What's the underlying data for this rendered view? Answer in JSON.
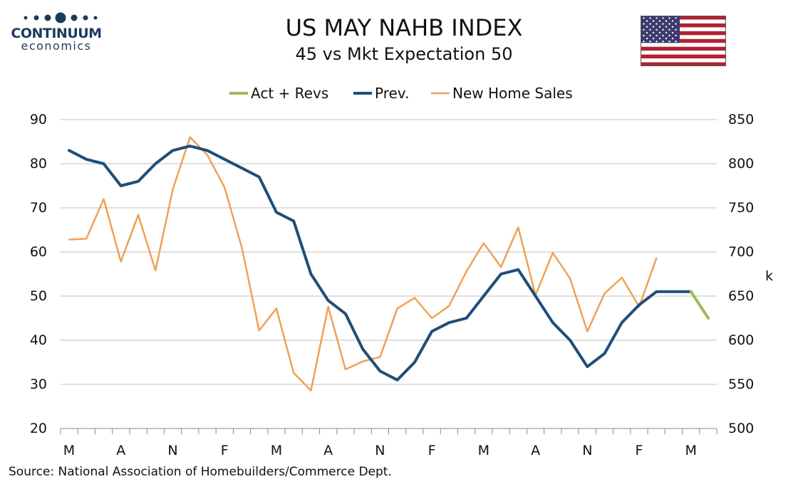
{
  "header": {
    "title": "US MAY NAHB INDEX",
    "subtitle": "45 vs Mkt Expectation 50"
  },
  "logo": {
    "line1": "CONTINUUM",
    "line2": "economics",
    "color": "#1d3a5f"
  },
  "flag": {
    "icon": "us-flag-icon"
  },
  "source": "Source: National Association of Homebuilders/Commerce Dept.",
  "chart_data": {
    "type": "line",
    "legend": {
      "placement": "top-center"
    },
    "grid": true,
    "x_tick_labels": [
      "M",
      "A",
      "N",
      "F",
      "M",
      "A",
      "N",
      "F",
      "M",
      "A",
      "N",
      "F",
      "M"
    ],
    "y_left": {
      "ticks": [
        20,
        30,
        40,
        50,
        60,
        70,
        80,
        90
      ],
      "range": [
        20,
        90
      ]
    },
    "y_right": {
      "ticks": [
        500,
        550,
        600,
        650,
        700,
        750,
        800,
        850
      ],
      "range": [
        500,
        850
      ],
      "unit_label": "k"
    },
    "series": [
      {
        "name": "Act + Revs",
        "color": "#9bbb59",
        "axis": "left",
        "start_index": 36,
        "values": [
          51,
          45
        ]
      },
      {
        "name": "Prev.",
        "color": "#1f4e79",
        "axis": "left",
        "start_index": 0,
        "values": [
          83,
          81,
          80,
          75,
          76,
          80,
          83,
          84,
          83,
          81,
          79,
          77,
          69,
          67,
          55,
          49,
          46,
          38,
          33,
          31,
          35,
          42,
          44,
          45,
          50,
          55,
          56,
          50,
          44,
          40,
          34,
          37,
          44,
          48,
          51,
          51,
          51
        ]
      },
      {
        "name": "New Home Sales",
        "color": "#f0a055",
        "axis": "right",
        "start_index": 0,
        "values": [
          714,
          715,
          760,
          689,
          742,
          679,
          771,
          830,
          810,
          773,
          705,
          611,
          636,
          563,
          543,
          638,
          567,
          576,
          581,
          636,
          648,
          625,
          639,
          678,
          710,
          683,
          728,
          651,
          699,
          670,
          610,
          653,
          671,
          638,
          693
        ]
      }
    ]
  }
}
